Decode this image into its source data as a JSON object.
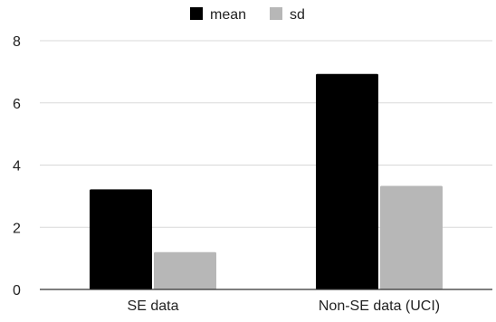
{
  "chart_data": {
    "type": "bar",
    "title": "",
    "xlabel": "",
    "ylabel": "",
    "categories": [
      "SE data",
      "Non-SE data (UCI)"
    ],
    "series": [
      {
        "name": "mean",
        "values": [
          3.22,
          6.93
        ],
        "color": "#000000"
      },
      {
        "name": "sd",
        "values": [
          1.2,
          3.33
        ],
        "color": "#b7b7b7"
      }
    ],
    "ylim": [
      0,
      8
    ],
    "yticks": [
      "0",
      "2",
      "4",
      "6",
      "8"
    ],
    "grid": true,
    "legend_position": "top-center"
  }
}
